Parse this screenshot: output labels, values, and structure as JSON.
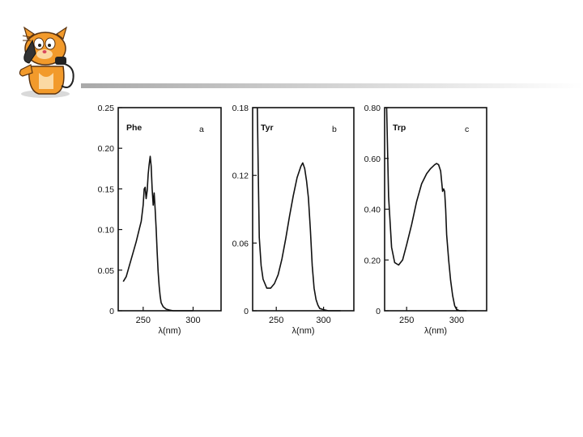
{
  "chart_data": [
    {
      "type": "line",
      "panel_letter": "a",
      "series": [
        {
          "name": "Phe",
          "x": [
            230,
            233,
            236,
            240,
            243,
            246,
            248,
            250,
            251,
            252,
            253,
            254,
            255,
            256,
            257,
            258,
            259,
            260,
            261,
            262,
            263,
            264,
            265,
            266,
            267,
            268,
            270,
            273,
            276,
            280,
            285,
            290,
            300
          ],
          "y": [
            0.036,
            0.042,
            0.055,
            0.072,
            0.085,
            0.1,
            0.11,
            0.13,
            0.15,
            0.152,
            0.138,
            0.148,
            0.168,
            0.18,
            0.19,
            0.178,
            0.15,
            0.13,
            0.145,
            0.125,
            0.1,
            0.072,
            0.048,
            0.03,
            0.018,
            0.01,
            0.005,
            0.002,
            0.001,
            0.0,
            0.0,
            0.0,
            0.0
          ]
        }
      ],
      "xticks": [
        250,
        300
      ],
      "yticks": [
        "0",
        "0.05",
        "0.10",
        "0.15",
        "0.20",
        "0.25"
      ],
      "xlabel": "λ(nm)",
      "xlim": [
        225,
        328
      ],
      "ylim": [
        0,
        0.25
      ]
    },
    {
      "type": "line",
      "panel_letter": "b",
      "series": [
        {
          "name": "Tyr",
          "x": [
            230,
            231,
            232,
            234,
            236,
            240,
            244,
            248,
            252,
            256,
            260,
            264,
            268,
            272,
            276,
            278,
            280,
            282,
            284,
            286,
            288,
            290,
            292,
            294,
            296,
            300,
            305,
            310,
            318
          ],
          "y": [
            0.18,
            0.12,
            0.065,
            0.04,
            0.028,
            0.02,
            0.02,
            0.024,
            0.032,
            0.046,
            0.064,
            0.084,
            0.102,
            0.118,
            0.128,
            0.131,
            0.126,
            0.115,
            0.1,
            0.072,
            0.04,
            0.02,
            0.01,
            0.005,
            0.002,
            0.001,
            0.0,
            0.0,
            0.0
          ]
        }
      ],
      "xticks": [
        250,
        300
      ],
      "yticks": [
        "0",
        "0.06",
        "0.12",
        "0.18"
      ],
      "xlabel": "λ(nm)",
      "xlim": [
        225,
        332
      ],
      "ylim": [
        0,
        0.18
      ]
    },
    {
      "type": "line",
      "panel_letter": "c",
      "series": [
        {
          "name": "Trp",
          "x": [
            230,
            232,
            235,
            238,
            242,
            246,
            250,
            255,
            260,
            265,
            270,
            274,
            278,
            280,
            282,
            284,
            286,
            287,
            288,
            289,
            290,
            292,
            294,
            296,
            298,
            300,
            303,
            306,
            310
          ],
          "y": [
            0.8,
            0.45,
            0.25,
            0.19,
            0.18,
            0.2,
            0.26,
            0.34,
            0.43,
            0.5,
            0.54,
            0.56,
            0.575,
            0.58,
            0.575,
            0.55,
            0.47,
            0.48,
            0.47,
            0.4,
            0.3,
            0.2,
            0.12,
            0.06,
            0.02,
            0.005,
            0.0,
            0.0,
            0.0
          ]
        }
      ],
      "xticks": [
        250,
        300
      ],
      "yticks": [
        "0",
        "0.20",
        "0.40",
        "0.60",
        "0.80"
      ],
      "xlabel": "λ(nm)",
      "xlim": [
        228,
        330
      ],
      "ylim": [
        0,
        0.8
      ]
    }
  ]
}
